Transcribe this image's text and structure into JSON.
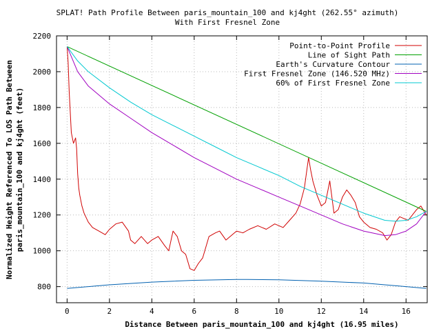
{
  "chart_data": {
    "type": "line",
    "title_line1": "SPLAT! Path Profile Between paris_mountain_100 and kj4ght (262.55° azimuth)",
    "title_line2": "With First Fresnel Zone",
    "xlabel": "Distance Between paris_mountain_100 and kj4ght (16.95 miles)",
    "ylabel_line1": "Normalized Height Referenced To LOS Path Between",
    "ylabel_line2": "paris_mountain_100 and kj4ght (feet)",
    "xlim": [
      -0.5,
      17.0
    ],
    "ylim": [
      710,
      2200
    ],
    "xticks": [
      "0",
      "2",
      "4",
      "6",
      "8",
      "10",
      "12",
      "14",
      "16"
    ],
    "yticks": [
      "800",
      "1000",
      "1200",
      "1400",
      "1600",
      "1800",
      "2000",
      "2200"
    ],
    "legend_position": "top-right",
    "series": [
      {
        "name": "Point-to-Point Profile",
        "color": "#d00000",
        "x": [
          0,
          0.05,
          0.1,
          0.2,
          0.3,
          0.4,
          0.45,
          0.5,
          0.55,
          0.6,
          0.7,
          0.8,
          1.0,
          1.2,
          1.5,
          1.8,
          2.0,
          2.3,
          2.6,
          2.9,
          3.0,
          3.2,
          3.5,
          3.8,
          4.0,
          4.3,
          4.6,
          4.8,
          5.0,
          5.2,
          5.4,
          5.6,
          5.8,
          6.0,
          6.2,
          6.4,
          6.7,
          7.0,
          7.2,
          7.5,
          7.8,
          8.0,
          8.3,
          8.6,
          9.0,
          9.4,
          9.8,
          10.2,
          10.5,
          10.8,
          11.0,
          11.2,
          11.4,
          11.5,
          11.6,
          11.8,
          12.0,
          12.2,
          12.4,
          12.6,
          12.8,
          13.0,
          13.2,
          13.4,
          13.6,
          13.8,
          14.0,
          14.3,
          14.6,
          14.9,
          15.1,
          15.3,
          15.5,
          15.7,
          15.9,
          16.1,
          16.3,
          16.5,
          16.7,
          16.95
        ],
        "y": [
          2140,
          2050,
          1890,
          1660,
          1600,
          1630,
          1570,
          1430,
          1350,
          1310,
          1250,
          1210,
          1160,
          1130,
          1110,
          1090,
          1120,
          1150,
          1160,
          1110,
          1060,
          1040,
          1080,
          1040,
          1060,
          1080,
          1030,
          1000,
          1110,
          1080,
          1000,
          980,
          900,
          890,
          930,
          960,
          1080,
          1100,
          1110,
          1060,
          1090,
          1110,
          1100,
          1120,
          1140,
          1120,
          1150,
          1130,
          1170,
          1210,
          1260,
          1350,
          1520,
          1450,
          1390,
          1310,
          1250,
          1270,
          1390,
          1210,
          1230,
          1300,
          1340,
          1310,
          1270,
          1190,
          1160,
          1130,
          1120,
          1100,
          1060,
          1090,
          1160,
          1190,
          1180,
          1170,
          1200,
          1230,
          1250,
          1200
        ]
      },
      {
        "name": "Line of Sight Path",
        "color": "#00a000",
        "x": [
          0,
          16.95
        ],
        "y": [
          2140,
          1220
        ]
      },
      {
        "name": "Earth's Curvature Contour",
        "color": "#0060b0",
        "x": [
          0,
          2,
          4,
          6,
          8,
          8.5,
          10,
          12,
          14,
          16,
          16.95
        ],
        "y": [
          790,
          810,
          825,
          835,
          840,
          840,
          838,
          830,
          820,
          800,
          790
        ]
      },
      {
        "name": "First Fresnel Zone (146.520 MHz)",
        "color": "#a000c0",
        "x": [
          0,
          0.5,
          1,
          2,
          3,
          4,
          5,
          6,
          7,
          8,
          9,
          10,
          11,
          12,
          13,
          14,
          15,
          15.5,
          16,
          16.5,
          16.95
        ],
        "y": [
          2140,
          2000,
          1920,
          1820,
          1740,
          1660,
          1590,
          1520,
          1460,
          1400,
          1350,
          1300,
          1250,
          1200,
          1150,
          1110,
          1085,
          1090,
          1110,
          1150,
          1220
        ]
      },
      {
        "name": "60% of First Fresnel Zone",
        "color": "#00c8d0",
        "x": [
          0,
          0.5,
          1,
          2,
          3,
          4,
          5,
          6,
          7,
          8,
          9,
          10,
          11,
          12,
          13,
          14,
          15,
          15.5,
          16,
          16.5,
          16.95
        ],
        "y": [
          2140,
          2060,
          2000,
          1910,
          1830,
          1760,
          1700,
          1640,
          1580,
          1520,
          1470,
          1420,
          1360,
          1310,
          1260,
          1210,
          1170,
          1165,
          1170,
          1190,
          1220
        ]
      }
    ]
  }
}
